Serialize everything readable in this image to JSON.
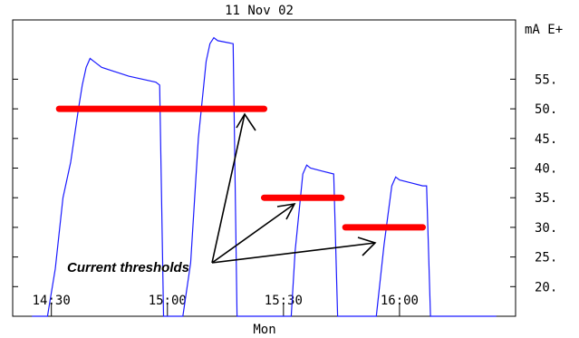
{
  "chart_data": {
    "type": "line",
    "title": "11 Nov  02",
    "xlabel": "Mon",
    "ylabel": "mA E+",
    "x_ticks": [
      "14:30",
      "15:00",
      "15:30",
      "16:00"
    ],
    "y_ticks": [
      "55.",
      "50.",
      "45.",
      "40.",
      "35.",
      "30.",
      "25.",
      "20."
    ],
    "ylim": [
      15,
      65
    ],
    "series": [
      {
        "color": "#1a1aff",
        "points": [
          [
            "14:25",
            15.0
          ],
          [
            "14:29",
            15.0
          ],
          [
            "14:31",
            23.0
          ],
          [
            "14:33",
            35.0
          ],
          [
            "14:35",
            41.0
          ],
          [
            "14:37",
            50.0
          ],
          [
            "14:38",
            54.0
          ],
          [
            "14:39",
            57.0
          ],
          [
            "14:40",
            58.5
          ],
          [
            "14:41",
            58.0
          ],
          [
            "14:43",
            57.0
          ],
          [
            "14:50",
            55.5
          ],
          [
            "14:57",
            54.5
          ],
          [
            "14:58",
            54.0
          ],
          [
            "14:59",
            15.0
          ],
          [
            "15:04",
            15.0
          ],
          [
            "15:06",
            24.0
          ],
          [
            "15:08",
            45.0
          ],
          [
            "15:10",
            58.0
          ],
          [
            "15:11",
            61.0
          ],
          [
            "15:12",
            62.0
          ],
          [
            "15:13",
            61.5
          ],
          [
            "15:17",
            61.0
          ],
          [
            "15:18",
            15.0
          ],
          [
            "15:32",
            15.0
          ],
          [
            "15:33",
            26.0
          ],
          [
            "15:35",
            39.0
          ],
          [
            "15:36",
            40.5
          ],
          [
            "15:37",
            40.0
          ],
          [
            "15:40",
            39.5
          ],
          [
            "15:43",
            39.0
          ],
          [
            "15:44",
            15.0
          ],
          [
            "15:54",
            15.0
          ],
          [
            "15:56",
            27.0
          ],
          [
            "15:58",
            37.0
          ],
          [
            "15:59",
            38.5
          ],
          [
            "16:00",
            38.0
          ],
          [
            "16:03",
            37.5
          ],
          [
            "16:06",
            37.0
          ],
          [
            "16:07",
            37.0
          ],
          [
            "16:08",
            15.0
          ],
          [
            "16:25",
            15.0
          ]
        ]
      }
    ],
    "thresholds": [
      {
        "from": "14:32",
        "to": "15:25",
        "value": 50.0,
        "color": "#ff0000"
      },
      {
        "from": "15:25",
        "to": "15:45",
        "value": 35.0,
        "color": "#ff0000"
      },
      {
        "from": "15:46",
        "to": "16:06",
        "value": 30.0,
        "color": "#ff0000"
      }
    ],
    "annotation": "Current thresholds"
  }
}
